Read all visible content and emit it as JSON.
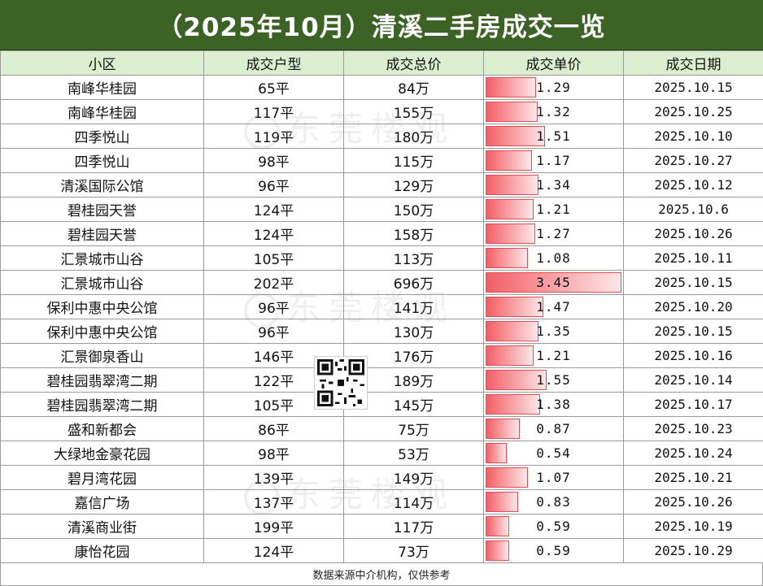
{
  "title": "（2025年10月）清溪二手房成交一览",
  "table": {
    "headers": [
      "小区",
      "成交户型",
      "成交总价",
      "成交单价",
      "成交日期"
    ],
    "rows": [
      {
        "community": "南峰华桂园",
        "layout": "65平",
        "total": "84万",
        "unit": "1.29",
        "date": "2025.10.15"
      },
      {
        "community": "南峰华桂园",
        "layout": "117平",
        "total": "155万",
        "unit": "1.32",
        "date": "2025.10.25"
      },
      {
        "community": "四季悦山",
        "layout": "119平",
        "total": "180万",
        "unit": "1.51",
        "date": "2025.10.10"
      },
      {
        "community": "四季悦山",
        "layout": "98平",
        "total": "115万",
        "unit": "1.17",
        "date": "2025.10.27"
      },
      {
        "community": "清溪国际公馆",
        "layout": "96平",
        "total": "129万",
        "unit": "1.34",
        "date": "2025.10.12"
      },
      {
        "community": "碧桂园天誉",
        "layout": "124平",
        "total": "150万",
        "unit": "1.21",
        "date": "2025.10.6"
      },
      {
        "community": "碧桂园天誉",
        "layout": "124平",
        "total": "158万",
        "unit": "1.27",
        "date": "2025.10.26"
      },
      {
        "community": "汇景城市山谷",
        "layout": "105平",
        "total": "113万",
        "unit": "1.08",
        "date": "2025.10.11"
      },
      {
        "community": "汇景城市山谷",
        "layout": "202平",
        "total": "696万",
        "unit": "3.45",
        "date": "2025.10.15"
      },
      {
        "community": "保利中惠中央公馆",
        "layout": "96平",
        "total": "141万",
        "unit": "1.47",
        "date": "2025.10.20"
      },
      {
        "community": "保利中惠中央公馆",
        "layout": "96平",
        "total": "130万",
        "unit": "1.35",
        "date": "2025.10.15"
      },
      {
        "community": "汇景御泉香山",
        "layout": "146平",
        "total": "176万",
        "unit": "1.21",
        "date": "2025.10.16"
      },
      {
        "community": "碧桂园翡翠湾二期",
        "layout": "122平",
        "total": "189万",
        "unit": "1.55",
        "date": "2025.10.14"
      },
      {
        "community": "碧桂园翡翠湾二期",
        "layout": "105平",
        "total": "145万",
        "unit": "1.38",
        "date": "2025.10.17"
      },
      {
        "community": "盛和新都会",
        "layout": "86平",
        "total": "75万",
        "unit": "0.87",
        "date": "2025.10.23"
      },
      {
        "community": "大绿地金豪花园",
        "layout": "98平",
        "total": "53万",
        "unit": "0.54",
        "date": "2025.10.24"
      },
      {
        "community": "碧月湾花园",
        "layout": "139平",
        "total": "149万",
        "unit": "1.07",
        "date": "2025.10.21"
      },
      {
        "community": "嘉信广场",
        "layout": "137平",
        "total": "114万",
        "unit": "0.83",
        "date": "2025.10.26"
      },
      {
        "community": "清溪商业街",
        "layout": "199平",
        "total": "117万",
        "unit": "0.59",
        "date": "2025.10.19"
      },
      {
        "community": "康怡花园",
        "layout": "124平",
        "total": "73万",
        "unit": "0.59",
        "date": "2025.10.29"
      }
    ],
    "unit_bar_max": 3.45
  },
  "footer": "数据来源中介机构，仅供参考",
  "watermark": "东莞楼观",
  "colors": {
    "title_bg": "#3c6226",
    "header_bg": "#dbeecf",
    "bar": "#f25f66"
  }
}
